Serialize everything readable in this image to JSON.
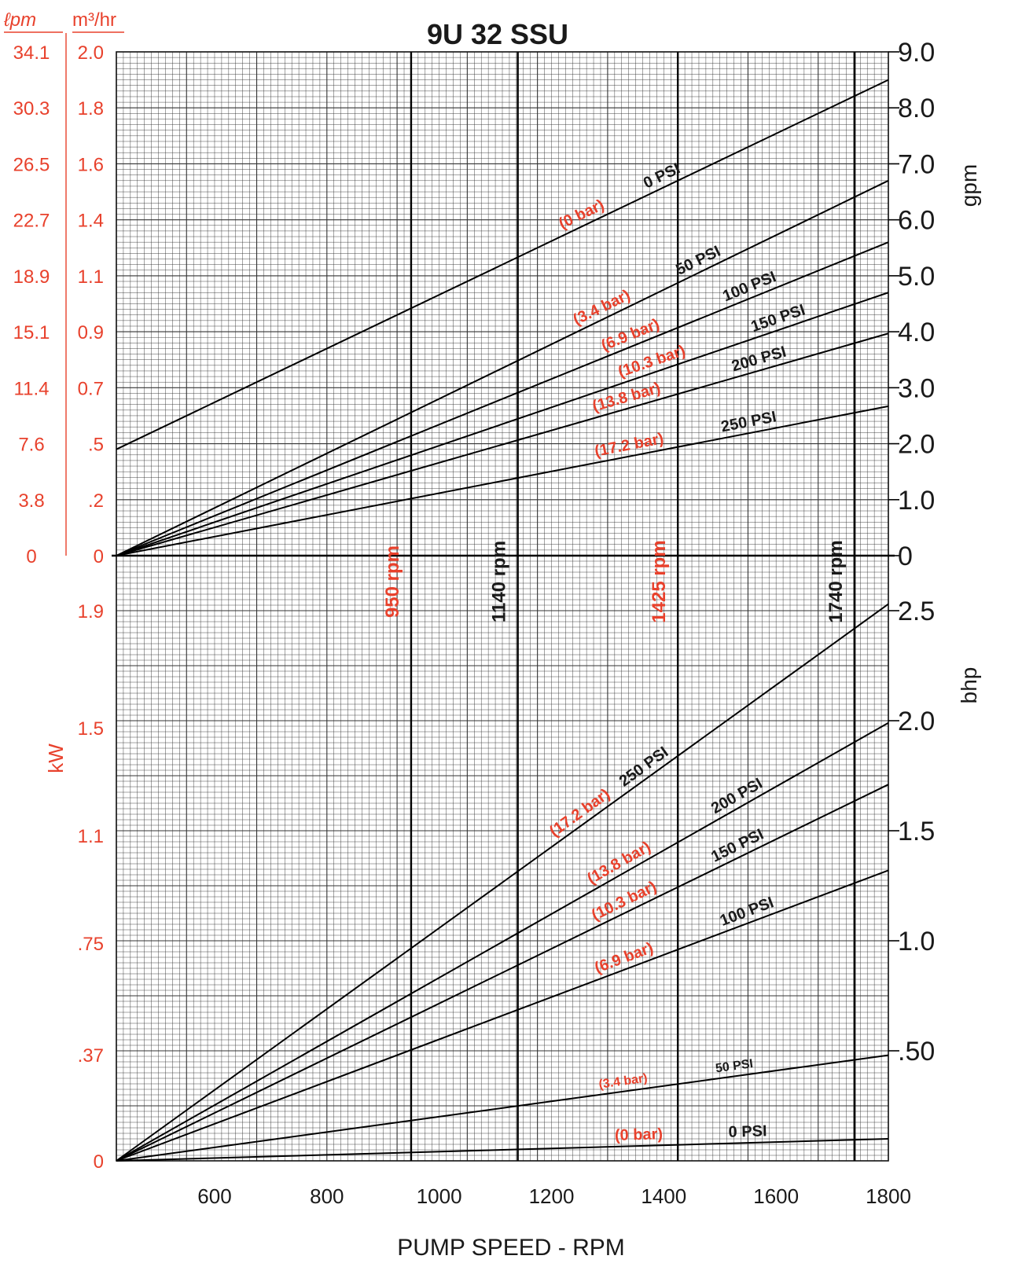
{
  "chart_data": {
    "type": "line",
    "title": "9U 32 SSU",
    "xlabel": "PUMP SPEED - RPM",
    "xticks": [
      "600",
      "800",
      "1000",
      "1200",
      "1400",
      "1600",
      "1800"
    ],
    "xlim": [
      425,
      1800
    ],
    "grid": true,
    "colors": {
      "metric": "#e8412c",
      "imperial": "#1a1a1a"
    },
    "flow": {
      "ylabel": "gpm",
      "ylim": [
        0,
        9
      ],
      "yticks": [
        "0",
        "1.0",
        "2.0",
        "3.0",
        "4.0",
        "5.0",
        "6.0",
        "7.0",
        "8.0",
        "9.0"
      ],
      "lpm_header": "ℓpm",
      "m3hr_header": "m³/hr",
      "lpm_ticks": [
        "0",
        "3.8",
        "7.6",
        "11.4",
        "15.1",
        "18.9",
        "22.7",
        "26.5",
        "30.3",
        "34.1"
      ],
      "m3hr_ticks": [
        "0",
        ".2",
        ".5",
        "0.7",
        "0.9",
        "1.1",
        "1.4",
        "1.6",
        "1.8",
        "2.0"
      ],
      "series": [
        {
          "name": "0 PSI",
          "bar": "(0 bar)",
          "x": [
            425,
            1800
          ],
          "y": [
            1.9,
            8.5
          ]
        },
        {
          "name": "50 PSI",
          "bar": "(3.4 bar)",
          "x": [
            425,
            1800
          ],
          "y": [
            0,
            6.7
          ]
        },
        {
          "name": "100 PSI",
          "bar": "(6.9 bar)",
          "x": [
            425,
            1800
          ],
          "y": [
            0,
            5.6
          ]
        },
        {
          "name": "150 PSI",
          "bar": "(10.3 bar)",
          "x": [
            425,
            1800
          ],
          "y": [
            0,
            4.7
          ]
        },
        {
          "name": "200 PSI",
          "bar": "(13.8 bar)",
          "x": [
            425,
            1800
          ],
          "y": [
            0,
            3.97
          ]
        },
        {
          "name": "250 PSI",
          "bar": "(17.2 bar)",
          "x": [
            425,
            1800
          ],
          "y": [
            0,
            2.67
          ]
        }
      ]
    },
    "power": {
      "ylabel": "bhp",
      "ylim": [
        0,
        2.6
      ],
      "yticks": [
        ".50",
        "1.0",
        "1.5",
        "2.0",
        "2.5"
      ],
      "kw_label": "kW",
      "kw_ticks": [
        "0",
        ".37",
        ".75",
        "1.1",
        "1.5",
        "1.9"
      ],
      "series": [
        {
          "name": "250 PSI",
          "bar": "(17.2 bar)",
          "x": [
            425,
            1800
          ],
          "y": [
            0,
            2.53
          ]
        },
        {
          "name": "200 PSI",
          "bar": "(13.8 bar)",
          "x": [
            425,
            1800
          ],
          "y": [
            0,
            1.99
          ]
        },
        {
          "name": "150 PSI",
          "bar": "(10.3 bar)",
          "x": [
            425,
            1800
          ],
          "y": [
            0,
            1.71
          ]
        },
        {
          "name": "100 PSI",
          "bar": "(6.9 bar)",
          "x": [
            425,
            1800
          ],
          "y": [
            0,
            1.32
          ]
        },
        {
          "name": "50 PSI",
          "bar": "(3.4 bar)",
          "x": [
            425,
            1800
          ],
          "y": [
            0,
            0.48
          ]
        },
        {
          "name": "0 PSI",
          "bar": "(0 bar)",
          "x": [
            425,
            1800
          ],
          "y": [
            0,
            0.1
          ]
        }
      ]
    },
    "reference_speeds": [
      {
        "label": "950 rpm",
        "rpm": 950,
        "color": "metric"
      },
      {
        "label": "1140 rpm",
        "rpm": 1140,
        "color": "imperial"
      },
      {
        "label": "1425 rpm",
        "rpm": 1425,
        "color": "metric"
      },
      {
        "label": "1740 rpm",
        "rpm": 1740,
        "color": "imperial"
      }
    ]
  }
}
